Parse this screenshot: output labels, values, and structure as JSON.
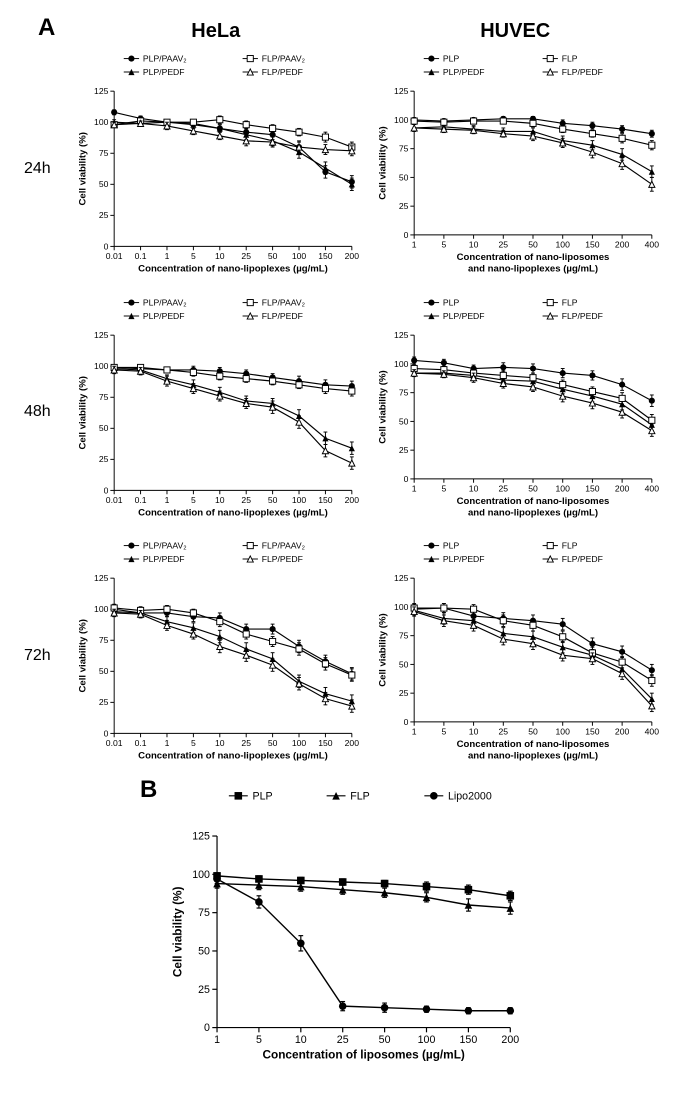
{
  "layout": {
    "panelA_x": 18,
    "panelA_y": 4,
    "row_labels": [
      "24h",
      "48h",
      "72h"
    ],
    "col_headers": [
      "HeLa",
      "HUVEC"
    ]
  },
  "style": {
    "axis_color": "#000000",
    "font_family": "Arial",
    "axis_fontsize": 9,
    "title_fontsize": 10,
    "y_label": "Cell viability (%)",
    "y_lim": [
      0,
      125
    ],
    "y_ticks": [
      0,
      25,
      50,
      75,
      100,
      125
    ],
    "tick_len": 4,
    "line_width": 1.2,
    "marker_size": 3.2,
    "err_cap": 2,
    "background": "#ffffff"
  },
  "hela": {
    "x_labels": [
      "0.01",
      "0.1",
      "1",
      "5",
      "10",
      "25",
      "50",
      "100",
      "150",
      "200"
    ],
    "x_label": "Concentration of nano-lipoplexes (µg/mL)",
    "legend": [
      {
        "label": "PLP/PAAV₂",
        "marker": "circle-filled"
      },
      {
        "label": "PLP/PEDF",
        "marker": "triangle-filled"
      },
      {
        "label": "FLP/PAAV₂",
        "marker": "square-open"
      },
      {
        "label": "FLP/PEDF",
        "marker": "triangle-open"
      }
    ]
  },
  "huvec": {
    "x_labels": [
      "1",
      "5",
      "10",
      "25",
      "50",
      "100",
      "150",
      "200",
      "400"
    ],
    "x_label": "Concentration of nano-liposomes\nand nano-lipoplexes (µg/mL)",
    "legend": [
      {
        "label": "PLP",
        "marker": "circle-filled"
      },
      {
        "label": "PLP/PEDF",
        "marker": "triangle-filled"
      },
      {
        "label": "FLP",
        "marker": "square-open"
      },
      {
        "label": "FLP/PEDF",
        "marker": "triangle-open"
      }
    ]
  },
  "charts": {
    "hela_24": {
      "series": [
        {
          "marker": "circle-filled",
          "y": [
            108,
            103,
            100,
            99,
            95,
            92,
            90,
            80,
            60,
            52
          ],
          "err": [
            2,
            2,
            2,
            3,
            3,
            3,
            4,
            5,
            5,
            5
          ]
        },
        {
          "marker": "triangle-filled",
          "y": [
            100,
            99,
            100,
            98,
            95,
            90,
            85,
            76,
            63,
            50
          ],
          "err": [
            2,
            2,
            2,
            3,
            3,
            4,
            4,
            5,
            5,
            5
          ]
        },
        {
          "marker": "square-open",
          "y": [
            98,
            101,
            100,
            100,
            102,
            98,
            95,
            92,
            88,
            80
          ],
          "err": [
            2,
            2,
            2,
            2,
            3,
            3,
            3,
            3,
            4,
            4
          ]
        },
        {
          "marker": "triangle-open",
          "y": [
            98,
            99,
            97,
            93,
            89,
            85,
            84,
            80,
            78,
            77
          ],
          "err": [
            2,
            2,
            3,
            3,
            3,
            4,
            4,
            4,
            4,
            4
          ]
        }
      ]
    },
    "huvec_24": {
      "series": [
        {
          "marker": "circle-filled",
          "y": [
            100,
            99,
            100,
            101,
            101,
            97,
            95,
            92,
            88
          ],
          "err": [
            2,
            2,
            2,
            2,
            2,
            3,
            3,
            3,
            3
          ]
        },
        {
          "marker": "triangle-filled",
          "y": [
            93,
            94,
            92,
            90,
            90,
            82,
            78,
            70,
            55
          ],
          "err": [
            3,
            3,
            3,
            3,
            3,
            4,
            4,
            5,
            5
          ]
        },
        {
          "marker": "square-open",
          "y": [
            99,
            98,
            99,
            99,
            97,
            92,
            88,
            84,
            78
          ],
          "err": [
            2,
            2,
            2,
            2,
            3,
            3,
            3,
            4,
            4
          ]
        },
        {
          "marker": "triangle-open",
          "y": [
            93,
            92,
            91,
            88,
            86,
            80,
            72,
            62,
            44
          ],
          "err": [
            3,
            3,
            3,
            3,
            4,
            4,
            5,
            5,
            6
          ]
        }
      ]
    },
    "hela_48": {
      "series": [
        {
          "marker": "circle-filled",
          "y": [
            99,
            98,
            97,
            97,
            96,
            94,
            91,
            88,
            85,
            84
          ],
          "err": [
            2,
            2,
            2,
            3,
            3,
            3,
            3,
            4,
            4,
            4
          ]
        },
        {
          "marker": "triangle-filled",
          "y": [
            98,
            97,
            90,
            85,
            79,
            72,
            70,
            60,
            42,
            34
          ],
          "err": [
            3,
            3,
            3,
            4,
            4,
            4,
            4,
            5,
            5,
            5
          ]
        },
        {
          "marker": "square-open",
          "y": [
            99,
            99,
            97,
            95,
            92,
            90,
            88,
            85,
            82,
            80
          ],
          "err": [
            2,
            2,
            2,
            3,
            3,
            3,
            3,
            3,
            4,
            4
          ]
        },
        {
          "marker": "triangle-open",
          "y": [
            97,
            96,
            88,
            82,
            76,
            70,
            67,
            55,
            32,
            22
          ],
          "err": [
            3,
            3,
            4,
            4,
            4,
            4,
            5,
            5,
            5,
            5
          ]
        }
      ]
    },
    "huvec_48": {
      "series": [
        {
          "marker": "circle-filled",
          "y": [
            103,
            101,
            96,
            97,
            96,
            92,
            90,
            82,
            68
          ],
          "err": [
            3,
            3,
            3,
            4,
            4,
            4,
            4,
            5,
            5
          ]
        },
        {
          "marker": "triangle-filled",
          "y": [
            92,
            92,
            90,
            86,
            85,
            78,
            72,
            65,
            47
          ],
          "err": [
            3,
            3,
            4,
            4,
            4,
            4,
            5,
            5,
            5
          ]
        },
        {
          "marker": "square-open",
          "y": [
            96,
            95,
            92,
            90,
            88,
            82,
            76,
            70,
            51
          ],
          "err": [
            3,
            3,
            3,
            4,
            4,
            4,
            4,
            5,
            5
          ]
        },
        {
          "marker": "triangle-open",
          "y": [
            92,
            91,
            88,
            83,
            80,
            72,
            66,
            58,
            42
          ],
          "err": [
            3,
            3,
            4,
            4,
            4,
            5,
            5,
            5,
            5
          ]
        }
      ]
    },
    "hela_72": {
      "series": [
        {
          "marker": "circle-filled",
          "y": [
            100,
            97,
            97,
            94,
            93,
            84,
            84,
            70,
            58,
            48
          ],
          "err": [
            3,
            3,
            3,
            4,
            4,
            4,
            4,
            5,
            5,
            5
          ]
        },
        {
          "marker": "triangle-filled",
          "y": [
            98,
            97,
            90,
            85,
            78,
            68,
            60,
            42,
            32,
            26
          ],
          "err": [
            3,
            3,
            4,
            4,
            5,
            5,
            5,
            5,
            5,
            5
          ]
        },
        {
          "marker": "square-open",
          "y": [
            101,
            99,
            100,
            97,
            90,
            80,
            74,
            68,
            56,
            47
          ],
          "err": [
            3,
            3,
            3,
            3,
            4,
            4,
            4,
            5,
            5,
            5
          ]
        },
        {
          "marker": "triangle-open",
          "y": [
            97,
            96,
            87,
            80,
            70,
            63,
            55,
            40,
            28,
            22
          ],
          "err": [
            3,
            3,
            4,
            4,
            5,
            5,
            5,
            5,
            5,
            5
          ]
        }
      ]
    },
    "huvec_72": {
      "series": [
        {
          "marker": "circle-filled",
          "y": [
            98,
            99,
            92,
            90,
            88,
            85,
            68,
            61,
            45
          ],
          "err": [
            4,
            4,
            4,
            5,
            5,
            5,
            5,
            5,
            5
          ]
        },
        {
          "marker": "triangle-filled",
          "y": [
            97,
            90,
            88,
            77,
            74,
            65,
            58,
            46,
            20
          ],
          "err": [
            4,
            5,
            5,
            5,
            5,
            5,
            5,
            5,
            5
          ]
        },
        {
          "marker": "square-open",
          "y": [
            99,
            99,
            98,
            88,
            84,
            74,
            60,
            52,
            36
          ],
          "err": [
            4,
            4,
            4,
            5,
            5,
            5,
            5,
            5,
            5
          ]
        },
        {
          "marker": "triangle-open",
          "y": [
            96,
            88,
            84,
            72,
            68,
            58,
            55,
            42,
            14
          ],
          "err": [
            4,
            5,
            5,
            5,
            5,
            5,
            5,
            5,
            5
          ]
        }
      ]
    }
  },
  "panelB": {
    "label": "B",
    "x_labels": [
      "1",
      "5",
      "10",
      "25",
      "50",
      "100",
      "150",
      "200"
    ],
    "x_label": "Concentration of liposomes (µg/mL)",
    "y_label": "Cell viability (%)",
    "legend": [
      {
        "label": "PLP",
        "marker": "square-filled"
      },
      {
        "label": "FLP",
        "marker": "triangle-filled"
      },
      {
        "label": "Lipo2000",
        "marker": "circle-filled"
      }
    ],
    "series": [
      {
        "marker": "square-filled",
        "y": [
          99,
          97,
          96,
          95,
          94,
          92,
          90,
          86
        ],
        "err": [
          2,
          2,
          2,
          2,
          2,
          3,
          3,
          3
        ]
      },
      {
        "marker": "triangle-filled",
        "y": [
          94,
          93,
          92,
          90,
          88,
          85,
          80,
          78
        ],
        "err": [
          3,
          3,
          3,
          3,
          3,
          3,
          4,
          4
        ]
      },
      {
        "marker": "circle-filled",
        "y": [
          97,
          82,
          55,
          14,
          13,
          12,
          11,
          11
        ],
        "err": [
          3,
          4,
          5,
          3,
          3,
          2,
          2,
          2
        ]
      }
    ]
  }
}
